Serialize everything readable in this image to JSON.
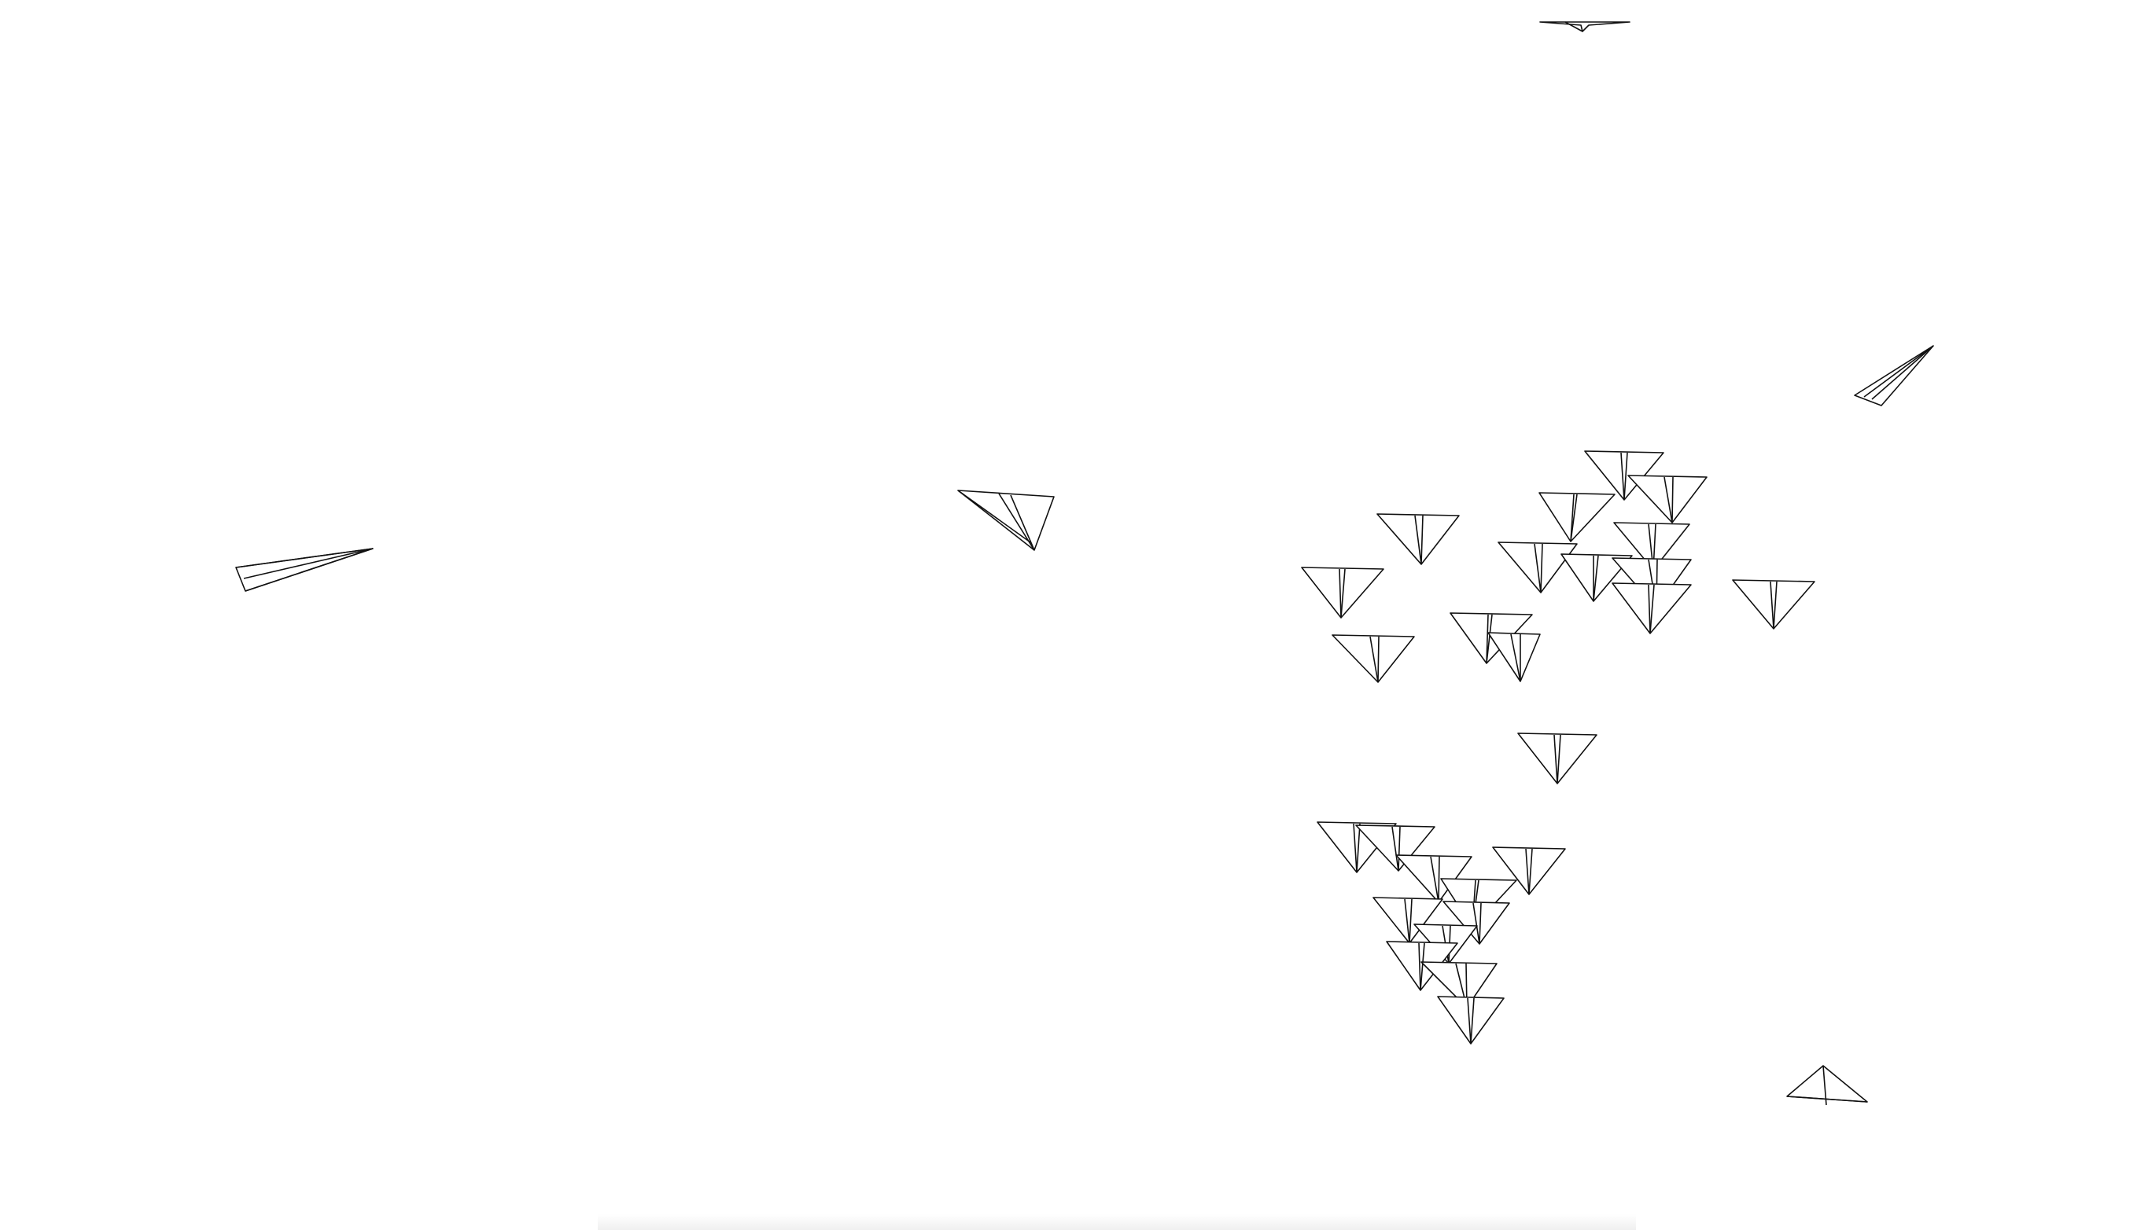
{
  "scene": {
    "background_color": "#ffffff",
    "stroke_color": "#111111",
    "boid_shape": "paper-plane",
    "boid_count": 40
  }
}
